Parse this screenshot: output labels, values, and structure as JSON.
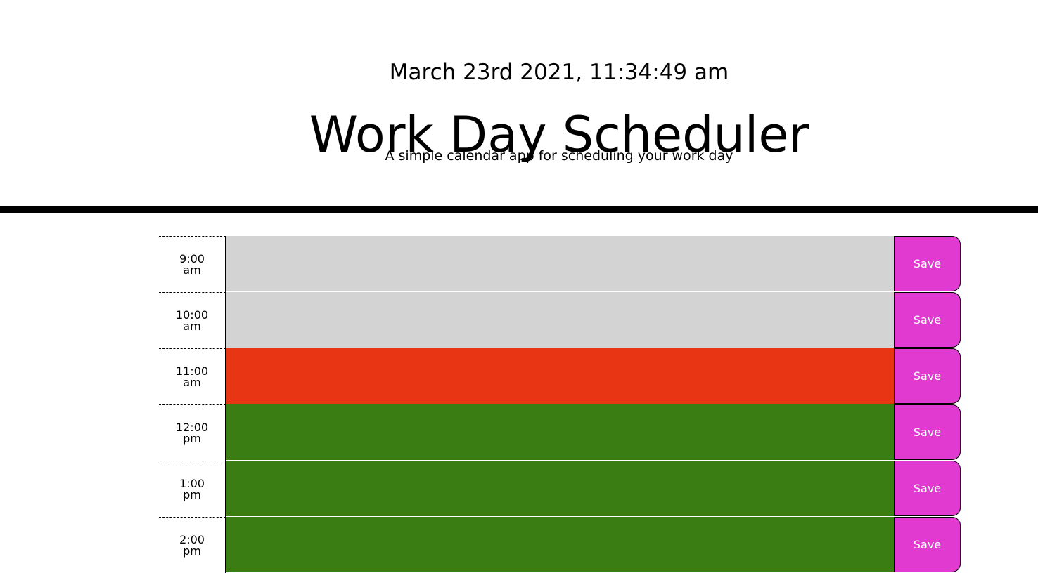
{
  "header": {
    "current_day": "March 23rd 2021, 11:34:49 am",
    "title": "Work Day Scheduler",
    "subtitle": "A simple calendar app for scheduling your work day"
  },
  "colors": {
    "past": "#d3d3d3",
    "present": "#e83514",
    "future": "#3a7d12",
    "save_button": "#e03ad0"
  },
  "schedule": {
    "rows": [
      {
        "hour": "9:00 am",
        "description": "",
        "status": "past",
        "save_label": "Save"
      },
      {
        "hour": "10:00 am",
        "description": "",
        "status": "past",
        "save_label": "Save"
      },
      {
        "hour": "11:00 am",
        "description": "",
        "status": "present",
        "save_label": "Save"
      },
      {
        "hour": "12:00 pm",
        "description": "",
        "status": "future",
        "save_label": "Save"
      },
      {
        "hour": "1:00 pm",
        "description": "",
        "status": "future",
        "save_label": "Save"
      },
      {
        "hour": "2:00 pm",
        "description": "",
        "status": "future",
        "save_label": "Save"
      }
    ]
  }
}
